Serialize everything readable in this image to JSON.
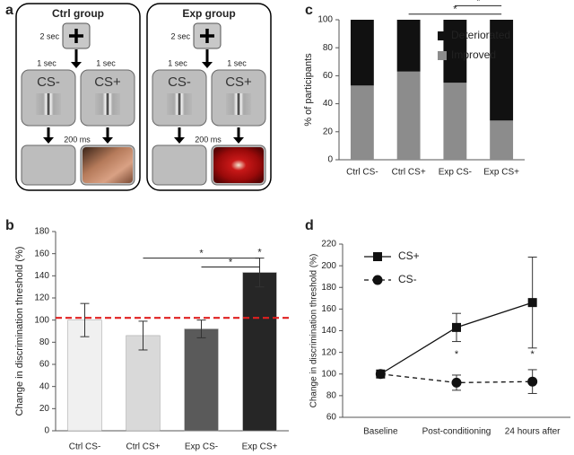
{
  "diagram": {
    "panel": "a",
    "groups": [
      {
        "title": "Ctrl group",
        "fixation": "2 sec",
        "cs_durations": [
          "1 sec",
          "1 sec"
        ],
        "stimuli": [
          "CS-",
          "CS+"
        ],
        "delay": "200 ms"
      },
      {
        "title": "Exp group",
        "fixation": "2 sec",
        "cs_durations": [
          "1 sec",
          "1 sec"
        ],
        "stimuli": [
          "CS-",
          "CS+"
        ],
        "delay": "200 ms"
      }
    ]
  },
  "chart_data": [
    {
      "type": "bar",
      "panel": "b",
      "categories": [
        "Ctrl CS-",
        "Ctrl CS+",
        "Exp CS-",
        "Exp CS+"
      ],
      "values": [
        100,
        86,
        92,
        143
      ],
      "errors": [
        15,
        13,
        8,
        13
      ],
      "colors": [
        "#f0f0f0",
        "#d9d9d9",
        "#5a5a5a",
        "#262626"
      ],
      "ylabel": "Change in discrimination threshold (%)",
      "ylim": [
        0,
        180
      ],
      "yticks": [
        0,
        20,
        40,
        60,
        80,
        100,
        120,
        140,
        160,
        180
      ],
      "reference_line": {
        "value": 102,
        "color": "#e02020"
      },
      "brackets": [
        {
          "text": "*",
          "from": "Ctrl CS+",
          "to": "Exp CS+",
          "y": 156
        },
        {
          "text": "*",
          "from": "Exp CS-",
          "to": "Exp CS+",
          "y": 148
        }
      ],
      "annotations": [
        {
          "text": "*",
          "x": "Exp CS+",
          "y": 161
        }
      ]
    },
    {
      "type": "bar",
      "panel": "c",
      "stacked": true,
      "categories": [
        "Ctrl CS-",
        "Ctrl CS+",
        "Exp CS-",
        "Exp CS+"
      ],
      "series": [
        {
          "name": "Improved",
          "color": "#8c8c8c",
          "values": [
            53,
            63,
            55,
            28
          ]
        },
        {
          "name": "Deteriorated",
          "color": "#111111",
          "values": [
            47,
            37,
            45,
            72
          ]
        }
      ],
      "ylabel": "% of participants",
      "ylim": [
        0,
        100
      ],
      "yticks": [
        0,
        20,
        40,
        60,
        80,
        100
      ],
      "legend": "right",
      "brackets": [
        {
          "text": "*",
          "from": "Ctrl CS+",
          "to": "Exp CS+",
          "y": 104
        },
        {
          "text": "*",
          "from": "Exp CS-",
          "to": "Exp CS+",
          "y": 110
        }
      ]
    },
    {
      "type": "line",
      "panel": "d",
      "categories": [
        "Baseline",
        "Post-conditioning",
        "24 hours after"
      ],
      "series": [
        {
          "name": "CS+",
          "color": "#111111",
          "marker": "square",
          "line_style": "solid",
          "values": [
            100,
            143,
            166
          ],
          "errors": [
            0,
            13,
            42
          ]
        },
        {
          "name": "CS-",
          "color": "#111111",
          "marker": "circle",
          "line_style": "dashed",
          "values": [
            100,
            92,
            93
          ],
          "errors": [
            0,
            7,
            11
          ]
        }
      ],
      "ylabel": "Change in discrimination threshold (%)",
      "ylim": [
        60,
        220
      ],
      "yticks": [
        60,
        80,
        100,
        120,
        140,
        160,
        180,
        200,
        220
      ],
      "legend": "upper left",
      "annotations": [
        {
          "text": "*",
          "x": "Post-conditioning",
          "y": 118
        },
        {
          "text": "*",
          "x": "24 hours after",
          "y": 118
        }
      ]
    }
  ]
}
